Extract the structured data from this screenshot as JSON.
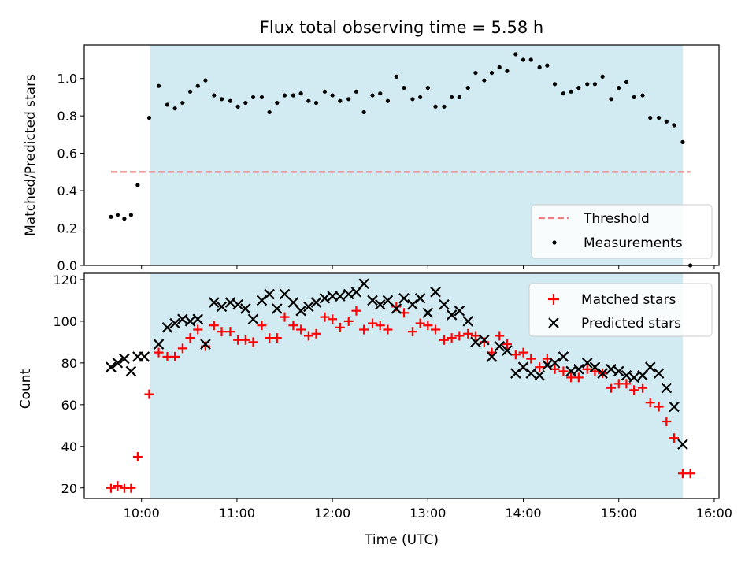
{
  "title": "Flux total observing time = 5.58 h",
  "colors": {
    "shade": "#add8e6",
    "threshold": "#f08080",
    "matched": "#ff0000",
    "predicted": "#000000",
    "measurement": "#000000"
  },
  "chart_data": [
    {
      "type": "scatter",
      "ylabel": "Matched/Predicted stars",
      "ylim": [
        0,
        1.18
      ],
      "yticks": [
        0.0,
        0.2,
        0.4,
        0.6,
        0.8,
        1.0
      ],
      "ytick_labels": [
        "0.0",
        "0.2",
        "0.4",
        "0.6",
        "0.8",
        "1.0"
      ],
      "xlim": [
        9.4,
        16.05
      ],
      "grid": false,
      "legend": "lower-right",
      "shaded_region": [
        10.09,
        15.67
      ],
      "threshold": {
        "name": "Threshold",
        "style": "dashed",
        "y": 0.5,
        "x": [
          9.68,
          15.75
        ]
      },
      "series": [
        {
          "name": "Measurements",
          "marker": "dot",
          "x": [
            9.68,
            9.75,
            9.82,
            9.89,
            9.96,
            10.08,
            10.18,
            10.27,
            10.35,
            10.43,
            10.51,
            10.59,
            10.67,
            10.76,
            10.84,
            10.93,
            11.01,
            11.09,
            11.17,
            11.26,
            11.34,
            11.42,
            11.5,
            11.59,
            11.67,
            11.75,
            11.83,
            11.92,
            12.0,
            12.08,
            12.17,
            12.25,
            12.33,
            12.42,
            12.5,
            12.58,
            12.67,
            12.75,
            12.84,
            12.92,
            13.0,
            13.08,
            13.17,
            13.25,
            13.33,
            13.42,
            13.5,
            13.59,
            13.67,
            13.75,
            13.83,
            13.92,
            14.0,
            14.08,
            14.17,
            14.25,
            14.33,
            14.42,
            14.5,
            14.58,
            14.67,
            14.75,
            14.83,
            14.92,
            15.0,
            15.08,
            15.16,
            15.25,
            15.33,
            15.42,
            15.5,
            15.58,
            15.67,
            15.75
          ],
          "y": [
            0.26,
            0.27,
            0.25,
            0.27,
            0.43,
            0.79,
            0.96,
            0.86,
            0.84,
            0.87,
            0.93,
            0.96,
            0.99,
            0.91,
            0.89,
            0.88,
            0.85,
            0.87,
            0.9,
            0.9,
            0.82,
            0.87,
            0.91,
            0.91,
            0.92,
            0.88,
            0.87,
            0.93,
            0.91,
            0.88,
            0.89,
            0.93,
            0.82,
            0.91,
            0.92,
            0.88,
            1.01,
            0.95,
            0.89,
            0.9,
            0.95,
            0.85,
            0.85,
            0.9,
            0.9,
            0.95,
            1.03,
            0.99,
            1.03,
            1.06,
            1.04,
            1.13,
            1.1,
            1.1,
            1.06,
            1.07,
            0.97,
            0.92,
            0.93,
            0.95,
            0.97,
            0.97,
            1.01,
            0.89,
            0.95,
            0.98,
            0.9,
            0.91,
            0.79,
            0.79,
            0.77,
            0.75,
            0.66,
            0.0
          ]
        }
      ]
    },
    {
      "type": "scatter",
      "xlabel": "Time (UTC)",
      "ylabel": "Count",
      "ylim": [
        15,
        123
      ],
      "yticks": [
        20,
        40,
        60,
        80,
        100,
        120
      ],
      "ytick_labels": [
        "20",
        "40",
        "60",
        "80",
        "100",
        "120"
      ],
      "xlim": [
        9.4,
        16.05
      ],
      "xticks": [
        10,
        11,
        12,
        13,
        14,
        15,
        16
      ],
      "xtick_labels": [
        "10:00",
        "11:00",
        "12:00",
        "13:00",
        "14:00",
        "15:00",
        "16:00"
      ],
      "grid": false,
      "legend": "top-right",
      "shaded_region": [
        10.09,
        15.67
      ],
      "series": [
        {
          "name": "Matched stars",
          "marker": "plus",
          "x": [
            9.68,
            9.75,
            9.82,
            9.89,
            9.96,
            10.08,
            10.18,
            10.27,
            10.35,
            10.43,
            10.51,
            10.59,
            10.67,
            10.76,
            10.84,
            10.93,
            11.01,
            11.09,
            11.17,
            11.26,
            11.34,
            11.42,
            11.5,
            11.59,
            11.67,
            11.75,
            11.83,
            11.92,
            12.0,
            12.08,
            12.17,
            12.25,
            12.33,
            12.42,
            12.5,
            12.58,
            12.67,
            12.75,
            12.84,
            12.92,
            13.0,
            13.08,
            13.17,
            13.25,
            13.33,
            13.42,
            13.5,
            13.59,
            13.67,
            13.75,
            13.83,
            13.92,
            14.0,
            14.08,
            14.17,
            14.25,
            14.33,
            14.42,
            14.5,
            14.58,
            14.67,
            14.75,
            14.83,
            14.92,
            15.0,
            15.08,
            15.16,
            15.25,
            15.33,
            15.42,
            15.5,
            15.58,
            15.67,
            15.75
          ],
          "y": [
            20,
            21,
            20,
            20,
            35,
            65,
            85,
            83,
            83,
            87,
            92,
            96,
            88,
            98,
            95,
            95,
            91,
            91,
            90,
            98,
            92,
            92,
            102,
            98,
            96,
            93,
            94,
            102,
            101,
            97,
            100,
            105,
            96,
            99,
            98,
            96,
            107,
            104,
            95,
            99,
            98,
            96,
            91,
            92,
            93,
            94,
            93,
            90,
            85,
            93,
            89,
            84,
            85,
            82,
            78,
            82,
            77,
            76,
            73,
            73,
            77,
            76,
            75,
            68,
            70,
            70,
            67,
            68,
            61,
            59,
            52,
            44,
            27,
            27
          ]
        },
        {
          "name": "Predicted stars",
          "marker": "x",
          "x": [
            9.68,
            9.75,
            9.82,
            9.89,
            9.96,
            10.03,
            10.18,
            10.27,
            10.35,
            10.43,
            10.51,
            10.59,
            10.67,
            10.76,
            10.84,
            10.93,
            11.01,
            11.09,
            11.17,
            11.26,
            11.34,
            11.42,
            11.5,
            11.59,
            11.67,
            11.75,
            11.83,
            11.92,
            12.0,
            12.08,
            12.17,
            12.25,
            12.33,
            12.42,
            12.5,
            12.58,
            12.67,
            12.75,
            12.84,
            12.92,
            13.0,
            13.08,
            13.17,
            13.25,
            13.33,
            13.42,
            13.5,
            13.59,
            13.67,
            13.75,
            13.83,
            13.92,
            14.0,
            14.08,
            14.17,
            14.25,
            14.33,
            14.42,
            14.5,
            14.58,
            14.67,
            14.75,
            14.83,
            14.92,
            15.0,
            15.08,
            15.16,
            15.25,
            15.33,
            15.42,
            15.5,
            15.58,
            15.67
          ],
          "y": [
            78,
            80,
            82,
            76,
            83,
            83,
            89,
            97,
            99,
            101,
            100,
            101,
            89,
            109,
            107,
            109,
            108,
            106,
            101,
            110,
            113,
            106,
            113,
            109,
            105,
            107,
            109,
            111,
            112,
            112,
            113,
            114,
            118,
            110,
            108,
            110,
            106,
            111,
            108,
            111,
            104,
            114,
            108,
            103,
            105,
            100,
            90,
            91,
            83,
            88,
            86,
            75,
            78,
            75,
            74,
            79,
            80,
            83,
            76,
            77,
            80,
            78,
            75,
            77,
            76,
            74,
            73,
            74,
            78,
            75,
            68,
            59,
            41
          ]
        }
      ]
    }
  ]
}
